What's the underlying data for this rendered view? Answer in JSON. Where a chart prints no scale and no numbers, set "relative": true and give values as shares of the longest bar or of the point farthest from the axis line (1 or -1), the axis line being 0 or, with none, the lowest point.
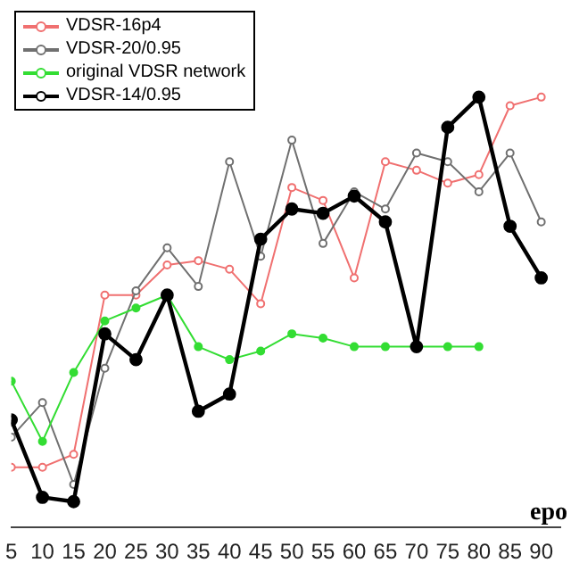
{
  "chart_data": {
    "type": "line",
    "xlabel": "epo",
    "relative": true,
    "x": [
      5,
      10,
      15,
      20,
      25,
      30,
      35,
      40,
      45,
      50,
      55,
      60,
      65,
      70,
      75,
      80,
      85,
      90
    ],
    "xlim": [
      5,
      93
    ],
    "xticks": [
      5,
      10,
      15,
      20,
      25,
      30,
      35,
      40,
      45,
      50,
      55,
      60,
      65,
      70,
      75,
      80,
      85,
      90
    ],
    "legend": "top left",
    "marker": "circle",
    "grid": false,
    "series": [
      {
        "name": "VDSR-16p4",
        "color": "#f07070",
        "values": [
          0.14,
          0.14,
          0.17,
          0.54,
          0.54,
          0.61,
          0.62,
          0.6,
          0.52,
          0.79,
          0.76,
          0.58,
          0.85,
          0.83,
          0.8,
          0.82,
          0.98,
          1.0
        ]
      },
      {
        "name": "VDSR-20/0.95",
        "color": "#707070",
        "values": [
          0.21,
          0.29,
          0.1,
          0.37,
          0.55,
          0.65,
          0.56,
          0.85,
          0.63,
          0.9,
          0.66,
          0.78,
          0.74,
          0.87,
          0.85,
          0.78,
          0.87,
          0.71
        ]
      },
      {
        "name": "original VDSR network",
        "color": "#33dd33",
        "values": [
          0.34,
          0.2,
          0.36,
          0.48,
          0.51,
          0.54,
          0.42,
          0.39,
          0.41,
          0.45,
          0.44,
          0.42,
          0.42,
          0.42,
          0.42,
          0.42,
          null,
          null
        ]
      },
      {
        "name": "VDSR-14/0.95",
        "color": "#000000",
        "values": [
          0.25,
          0.07,
          0.06,
          0.45,
          0.39,
          0.54,
          0.27,
          0.31,
          0.67,
          0.74,
          0.73,
          0.77,
          0.71,
          0.42,
          0.93,
          1.0,
          0.7,
          0.58
        ]
      }
    ]
  }
}
